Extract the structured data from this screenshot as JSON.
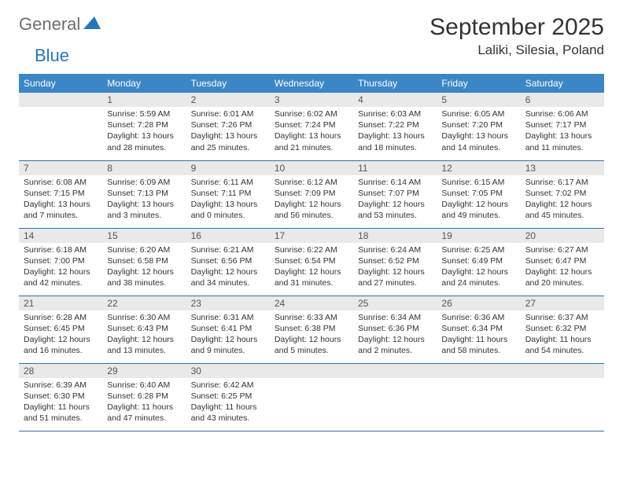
{
  "brand": {
    "word1": "General",
    "word2": "Blue"
  },
  "title": "September 2025",
  "location": "Laliki, Silesia, Poland",
  "colors": {
    "header_bg": "#3b86c6",
    "row_border": "#2f6fa6",
    "daynum_bg": "#e9e9e9",
    "brand_gray": "#6e6e6e",
    "brand_blue": "#2876b8"
  },
  "weekdays": [
    "Sunday",
    "Monday",
    "Tuesday",
    "Wednesday",
    "Thursday",
    "Friday",
    "Saturday"
  ],
  "grid": [
    [
      null,
      {
        "n": "1",
        "sr": "5:59 AM",
        "ss": "7:28 PM",
        "dl": "13 hours and 28 minutes."
      },
      {
        "n": "2",
        "sr": "6:01 AM",
        "ss": "7:26 PM",
        "dl": "13 hours and 25 minutes."
      },
      {
        "n": "3",
        "sr": "6:02 AM",
        "ss": "7:24 PM",
        "dl": "13 hours and 21 minutes."
      },
      {
        "n": "4",
        "sr": "6:03 AM",
        "ss": "7:22 PM",
        "dl": "13 hours and 18 minutes."
      },
      {
        "n": "5",
        "sr": "6:05 AM",
        "ss": "7:20 PM",
        "dl": "13 hours and 14 minutes."
      },
      {
        "n": "6",
        "sr": "6:06 AM",
        "ss": "7:17 PM",
        "dl": "13 hours and 11 minutes."
      }
    ],
    [
      {
        "n": "7",
        "sr": "6:08 AM",
        "ss": "7:15 PM",
        "dl": "13 hours and 7 minutes."
      },
      {
        "n": "8",
        "sr": "6:09 AM",
        "ss": "7:13 PM",
        "dl": "13 hours and 3 minutes."
      },
      {
        "n": "9",
        "sr": "6:11 AM",
        "ss": "7:11 PM",
        "dl": "13 hours and 0 minutes."
      },
      {
        "n": "10",
        "sr": "6:12 AM",
        "ss": "7:09 PM",
        "dl": "12 hours and 56 minutes."
      },
      {
        "n": "11",
        "sr": "6:14 AM",
        "ss": "7:07 PM",
        "dl": "12 hours and 53 minutes."
      },
      {
        "n": "12",
        "sr": "6:15 AM",
        "ss": "7:05 PM",
        "dl": "12 hours and 49 minutes."
      },
      {
        "n": "13",
        "sr": "6:17 AM",
        "ss": "7:02 PM",
        "dl": "12 hours and 45 minutes."
      }
    ],
    [
      {
        "n": "14",
        "sr": "6:18 AM",
        "ss": "7:00 PM",
        "dl": "12 hours and 42 minutes."
      },
      {
        "n": "15",
        "sr": "6:20 AM",
        "ss": "6:58 PM",
        "dl": "12 hours and 38 minutes."
      },
      {
        "n": "16",
        "sr": "6:21 AM",
        "ss": "6:56 PM",
        "dl": "12 hours and 34 minutes."
      },
      {
        "n": "17",
        "sr": "6:22 AM",
        "ss": "6:54 PM",
        "dl": "12 hours and 31 minutes."
      },
      {
        "n": "18",
        "sr": "6:24 AM",
        "ss": "6:52 PM",
        "dl": "12 hours and 27 minutes."
      },
      {
        "n": "19",
        "sr": "6:25 AM",
        "ss": "6:49 PM",
        "dl": "12 hours and 24 minutes."
      },
      {
        "n": "20",
        "sr": "6:27 AM",
        "ss": "6:47 PM",
        "dl": "12 hours and 20 minutes."
      }
    ],
    [
      {
        "n": "21",
        "sr": "6:28 AM",
        "ss": "6:45 PM",
        "dl": "12 hours and 16 minutes."
      },
      {
        "n": "22",
        "sr": "6:30 AM",
        "ss": "6:43 PM",
        "dl": "12 hours and 13 minutes."
      },
      {
        "n": "23",
        "sr": "6:31 AM",
        "ss": "6:41 PM",
        "dl": "12 hours and 9 minutes."
      },
      {
        "n": "24",
        "sr": "6:33 AM",
        "ss": "6:38 PM",
        "dl": "12 hours and 5 minutes."
      },
      {
        "n": "25",
        "sr": "6:34 AM",
        "ss": "6:36 PM",
        "dl": "12 hours and 2 minutes."
      },
      {
        "n": "26",
        "sr": "6:36 AM",
        "ss": "6:34 PM",
        "dl": "11 hours and 58 minutes."
      },
      {
        "n": "27",
        "sr": "6:37 AM",
        "ss": "6:32 PM",
        "dl": "11 hours and 54 minutes."
      }
    ],
    [
      {
        "n": "28",
        "sr": "6:39 AM",
        "ss": "6:30 PM",
        "dl": "11 hours and 51 minutes."
      },
      {
        "n": "29",
        "sr": "6:40 AM",
        "ss": "6:28 PM",
        "dl": "11 hours and 47 minutes."
      },
      {
        "n": "30",
        "sr": "6:42 AM",
        "ss": "6:25 PM",
        "dl": "11 hours and 43 minutes."
      },
      null,
      null,
      null,
      null
    ]
  ],
  "labels": {
    "sunrise": "Sunrise:",
    "sunset": "Sunset:",
    "daylight": "Daylight:"
  }
}
